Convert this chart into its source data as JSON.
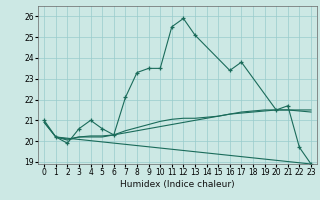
{
  "xlabel": "Humidex (Indice chaleur)",
  "bg_color": "#cce8e4",
  "grid_color": "#99cccc",
  "line_color": "#1a6b5a",
  "xlim": [
    -0.5,
    23.5
  ],
  "ylim": [
    18.9,
    26.5
  ],
  "yticks": [
    19,
    20,
    21,
    22,
    23,
    24,
    25,
    26
  ],
  "xticks": [
    0,
    1,
    2,
    3,
    4,
    5,
    6,
    7,
    8,
    9,
    10,
    11,
    12,
    13,
    14,
    15,
    16,
    17,
    18,
    19,
    20,
    21,
    22,
    23
  ],
  "series": [
    {
      "x": [
        0,
        1,
        2,
        3,
        4,
        5,
        6,
        7,
        8,
        9,
        10,
        11,
        12,
        13,
        16,
        17,
        20,
        21,
        22,
        23
      ],
      "y": [
        21.0,
        20.2,
        19.9,
        20.6,
        21.0,
        20.6,
        20.3,
        22.1,
        23.3,
        23.5,
        23.5,
        25.5,
        25.9,
        25.1,
        23.4,
        23.8,
        21.5,
        21.7,
        19.7,
        18.9
      ],
      "markers": true
    },
    {
      "x": [
        0,
        1,
        2,
        3,
        4,
        5,
        6,
        7,
        8,
        9,
        10,
        11,
        12,
        13,
        14,
        15,
        16,
        17,
        18,
        19,
        20,
        21,
        22,
        23
      ],
      "y": [
        20.9,
        20.2,
        20.1,
        20.2,
        20.2,
        20.2,
        20.3,
        20.4,
        20.5,
        20.6,
        20.7,
        20.8,
        20.9,
        21.0,
        21.1,
        21.2,
        21.3,
        21.35,
        21.4,
        21.45,
        21.5,
        21.5,
        21.5,
        21.5
      ],
      "markers": false
    },
    {
      "x": [
        0,
        1,
        2,
        3,
        4,
        5,
        6,
        7,
        8,
        9,
        10,
        11,
        12,
        13,
        14,
        15,
        16,
        17,
        18,
        19,
        20,
        21,
        22,
        23
      ],
      "y": [
        20.9,
        20.2,
        20.05,
        20.2,
        20.25,
        20.25,
        20.3,
        20.5,
        20.65,
        20.8,
        20.95,
        21.05,
        21.1,
        21.1,
        21.15,
        21.2,
        21.3,
        21.4,
        21.45,
        21.5,
        21.5,
        21.5,
        21.45,
        21.4
      ],
      "markers": false
    },
    {
      "x": [
        1,
        23
      ],
      "y": [
        20.2,
        18.9
      ],
      "markers": false
    }
  ]
}
